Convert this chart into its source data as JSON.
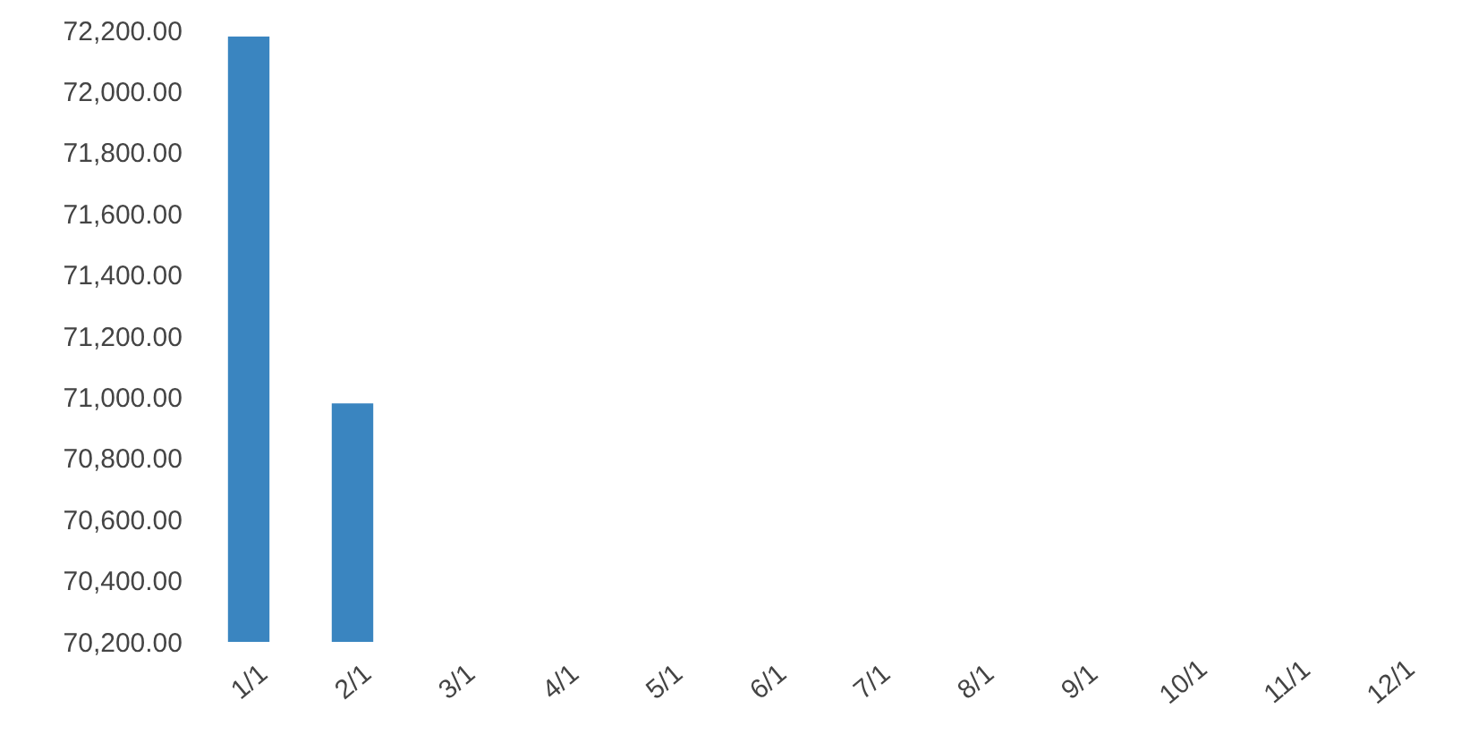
{
  "chart_data": {
    "type": "bar",
    "categories": [
      "1/1",
      "2/1",
      "3/1",
      "4/1",
      "5/1",
      "6/1",
      "7/1",
      "8/1",
      "9/1",
      "10/1",
      "11/1",
      "12/1"
    ],
    "values": [
      72180,
      70980,
      null,
      null,
      null,
      null,
      null,
      null,
      null,
      null,
      null,
      null
    ],
    "color": "#3a85c0",
    "ylim": [
      70200,
      72200
    ],
    "yticks": [
      {
        "value": 70200,
        "label": "70,200.00"
      },
      {
        "value": 70400,
        "label": "70,400.00"
      },
      {
        "value": 70600,
        "label": "70,600.00"
      },
      {
        "value": 70800,
        "label": "70,800.00"
      },
      {
        "value": 71000,
        "label": "71,000.00"
      },
      {
        "value": 71200,
        "label": "71,200.00"
      },
      {
        "value": 71400,
        "label": "71,400.00"
      },
      {
        "value": 71600,
        "label": "71,600.00"
      },
      {
        "value": 71800,
        "label": "71,800.00"
      },
      {
        "value": 72000,
        "label": "72,000.00"
      },
      {
        "value": 72200,
        "label": "72,200.00"
      }
    ],
    "grid": false
  }
}
